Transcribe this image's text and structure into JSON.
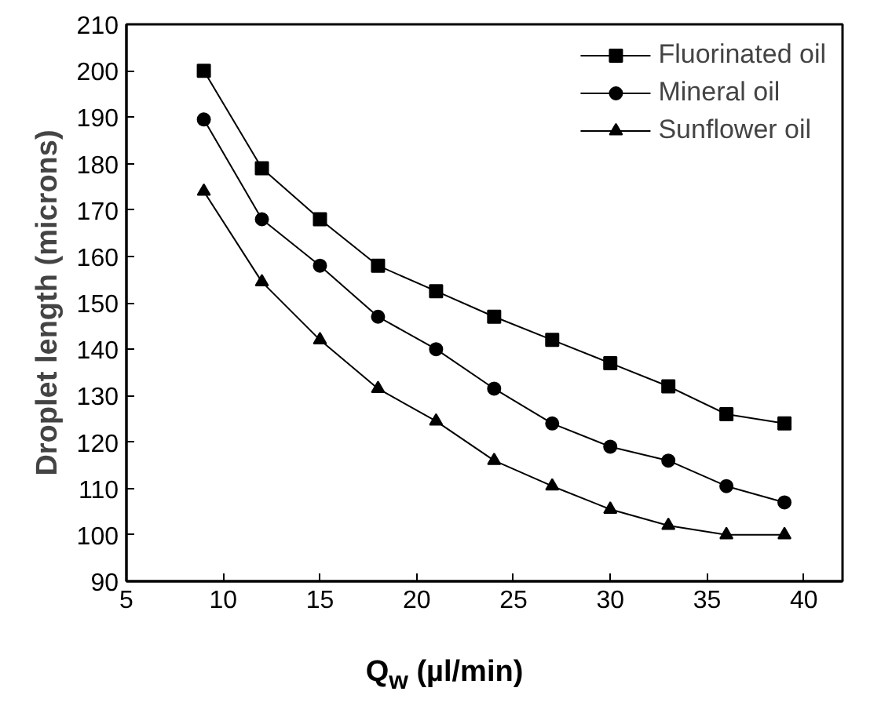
{
  "chart_data": {
    "type": "line",
    "xlabel": "Q$_{w}$ (µl/min)",
    "ylabel": "Droplet length (microns)",
    "x": [
      9,
      12,
      15,
      18,
      21,
      24,
      27,
      30,
      33,
      36,
      39
    ],
    "xlim": [
      5,
      42
    ],
    "xticks": [
      5,
      10,
      15,
      20,
      25,
      30,
      35,
      40
    ],
    "ylim": [
      90,
      210
    ],
    "yticks": [
      90,
      100,
      110,
      120,
      130,
      140,
      150,
      160,
      170,
      180,
      190,
      200,
      210
    ],
    "legend": "top right",
    "grid": false,
    "series": [
      {
        "name": "Fluorinated oil",
        "color": "#000000",
        "marker": "square",
        "values": [
          200,
          179,
          168,
          158,
          152.5,
          147,
          142,
          137,
          132,
          126,
          124
        ]
      },
      {
        "name": "Mineral oil",
        "color": "#000000",
        "marker": "circle",
        "values": [
          189.5,
          168,
          158,
          147,
          140,
          131.5,
          124,
          119,
          116,
          110.5,
          107
        ]
      },
      {
        "name": "Sunflower oil",
        "color": "#000000",
        "marker": "triangle",
        "values": [
          174,
          154.5,
          142,
          131.5,
          124.5,
          116,
          110.5,
          105.5,
          102,
          100,
          100
        ]
      }
    ]
  }
}
